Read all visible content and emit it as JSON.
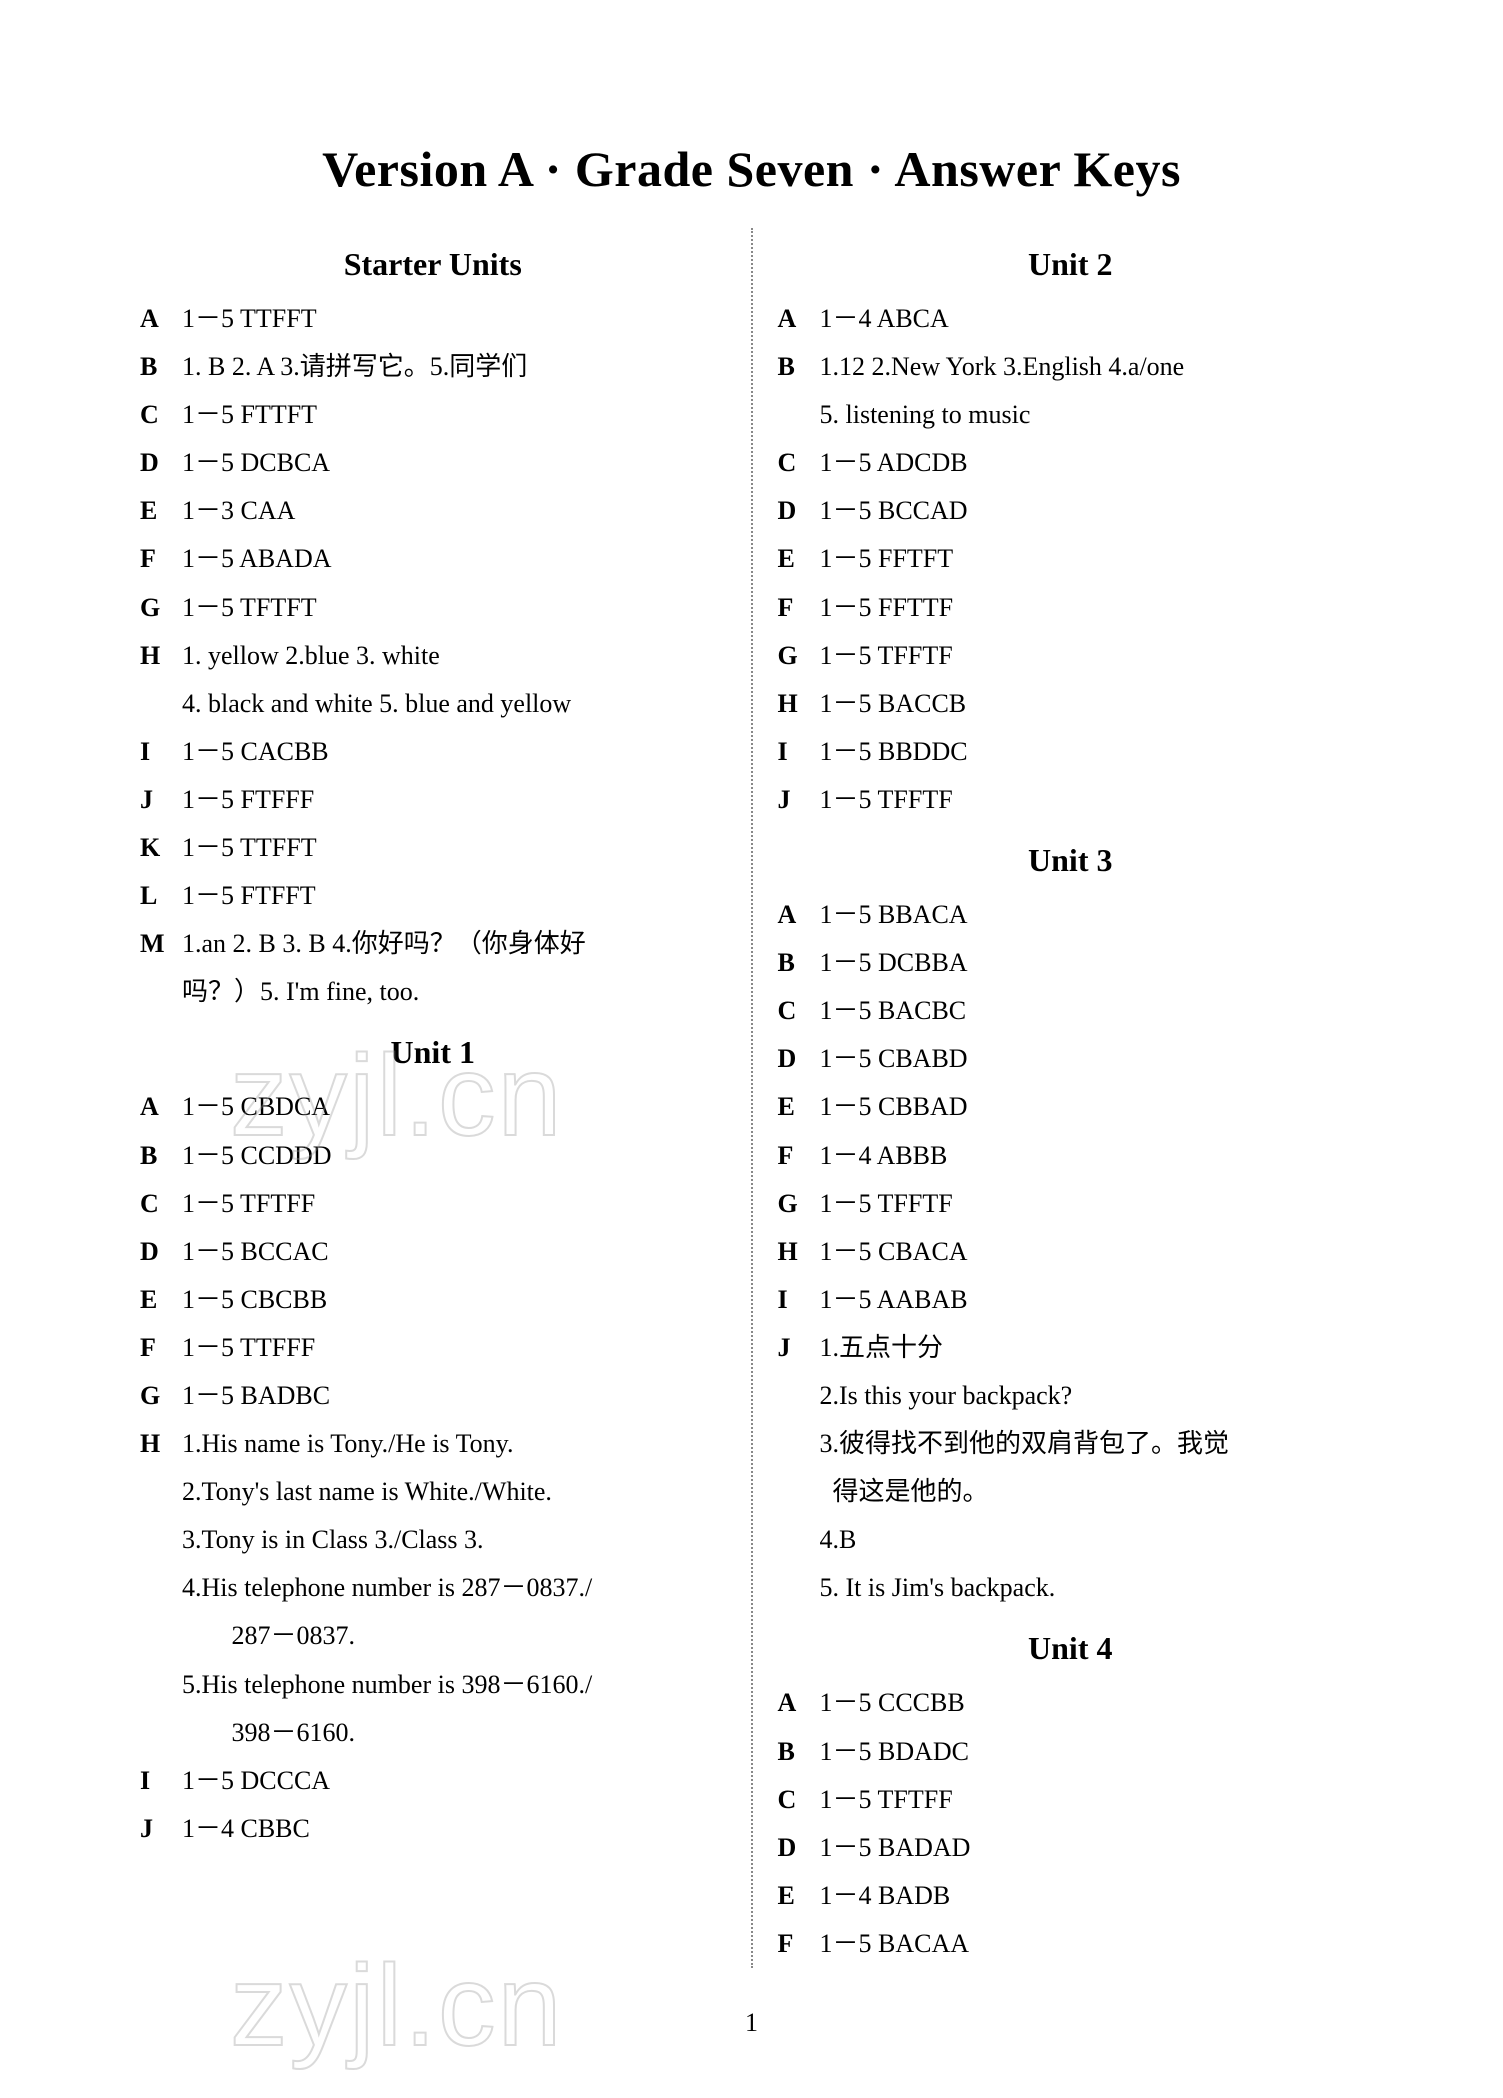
{
  "title": "Version A · Grade Seven ·  Answer Keys",
  "page_number": "1",
  "watermark": "zyjl.cn",
  "left": {
    "sections": [
      {
        "heading": "Starter Units",
        "rows": [
          {
            "label": "A",
            "lines": [
              "1－5 TTFFT"
            ]
          },
          {
            "label": "B",
            "lines": [
              "1. B 2. A 3.请拼写它。5.同学们"
            ]
          },
          {
            "label": "C",
            "lines": [
              "1－5 FTTFT"
            ]
          },
          {
            "label": "D",
            "lines": [
              "1－5 DCBCA"
            ]
          },
          {
            "label": "E",
            "lines": [
              "1－3 CAA"
            ]
          },
          {
            "label": "F",
            "lines": [
              "1－5 ABADA"
            ]
          },
          {
            "label": "G",
            "lines": [
              "1－5 TFTFT"
            ]
          },
          {
            "label": "H",
            "lines": [
              "1. yellow 2.blue 3. white",
              "4. black and white 5. blue and yellow"
            ]
          },
          {
            "label": "I",
            "lines": [
              "1－5 CACBB"
            ]
          },
          {
            "label": "J",
            "lines": [
              "1－5 FTFFF"
            ]
          },
          {
            "label": "K",
            "lines": [
              "1－5 TTFFT"
            ]
          },
          {
            "label": "L",
            "lines": [
              "1－5 FTFFT"
            ]
          },
          {
            "label": "M",
            "lines": [
              "1.an 2. B 3. B 4.你好吗？（你身体好",
              "吗？）5. I'm fine,  too."
            ]
          }
        ]
      },
      {
        "heading": "Unit 1",
        "rows": [
          {
            "label": "A",
            "lines": [
              "1－5 CBDCA"
            ]
          },
          {
            "label": "B",
            "lines": [
              "1－5 CCDDD"
            ]
          },
          {
            "label": "C",
            "lines": [
              "1－5 TFTFF"
            ]
          },
          {
            "label": "D",
            "lines": [
              "1－5 BCCAC"
            ]
          },
          {
            "label": "E",
            "lines": [
              "1－5 CBCBB"
            ]
          },
          {
            "label": "F",
            "lines": [
              "1－5 TTFFF"
            ]
          },
          {
            "label": "G",
            "lines": [
              "1－5 BADBC"
            ]
          },
          {
            "label": "H",
            "lines": [
              "1.His name is Tony./He is Tony.",
              "2.Tony's last name is White./White.",
              "3.Tony is in Class 3./Class 3.",
              "4.His telephone number is 287－0837./",
              "   287－0837.",
              "5.His telephone number is 398－6160./",
              "   398－6160."
            ]
          },
          {
            "label": "I",
            "lines": [
              "1－5 DCCCA"
            ]
          },
          {
            "label": "J",
            "lines": [
              "1－4 CBBC"
            ]
          }
        ]
      }
    ]
  },
  "right": {
    "sections": [
      {
        "heading": "Unit 2",
        "rows": [
          {
            "label": "A",
            "lines": [
              "1－4 ABCA"
            ]
          },
          {
            "label": "B",
            "lines": [
              "1.12 2.New York 3.English 4.a/one",
              "5. listening to music"
            ]
          },
          {
            "label": "C",
            "lines": [
              "1－5 ADCDB"
            ]
          },
          {
            "label": "D",
            "lines": [
              "1－5 BCCAD"
            ]
          },
          {
            "label": "E",
            "lines": [
              "1－5 FFTFT"
            ]
          },
          {
            "label": "F",
            "lines": [
              "1－5 FFTTF"
            ]
          },
          {
            "label": "G",
            "lines": [
              "1－5 TFFTF"
            ]
          },
          {
            "label": "H",
            "lines": [
              "1－5 BACCB"
            ]
          },
          {
            "label": "I",
            "lines": [
              "1－5 BBDDC"
            ]
          },
          {
            "label": "J",
            "lines": [
              "1－5 TFFTF"
            ]
          }
        ]
      },
      {
        "heading": "Unit 3",
        "rows": [
          {
            "label": "A",
            "lines": [
              "1－5 BBACA"
            ]
          },
          {
            "label": "B",
            "lines": [
              "1－5 DCBBA"
            ]
          },
          {
            "label": "C",
            "lines": [
              "1－5 BACBC"
            ]
          },
          {
            "label": "D",
            "lines": [
              "1－5 CBABD"
            ]
          },
          {
            "label": "E",
            "lines": [
              "1－5 CBBAD"
            ]
          },
          {
            "label": "F",
            "lines": [
              "1－4 ABBB"
            ]
          },
          {
            "label": "G",
            "lines": [
              "1－5 TFFTF"
            ]
          },
          {
            "label": "H",
            "lines": [
              "1－5 CBACA"
            ]
          },
          {
            "label": "I",
            "lines": [
              "1－5 AABAB"
            ]
          },
          {
            "label": "J",
            "lines": [
              "1.五点十分",
              "2.Is this your backpack?",
              "3.彼得找不到他的双肩背包了。我觉",
              "  得这是他的。",
              "4.B",
              "5. It is Jim's backpack."
            ]
          }
        ]
      },
      {
        "heading": "Unit 4",
        "rows": [
          {
            "label": "A",
            "lines": [
              "1－5 CCCBB"
            ]
          },
          {
            "label": "B",
            "lines": [
              "1－5 BDADC"
            ]
          },
          {
            "label": "C",
            "lines": [
              "1－5 TFTFF"
            ]
          },
          {
            "label": "D",
            "lines": [
              "1－5 BADAD"
            ]
          },
          {
            "label": "E",
            "lines": [
              "1－4 BADB"
            ]
          },
          {
            "label": "F",
            "lines": [
              "1－5 BACAA"
            ]
          }
        ]
      }
    ]
  }
}
